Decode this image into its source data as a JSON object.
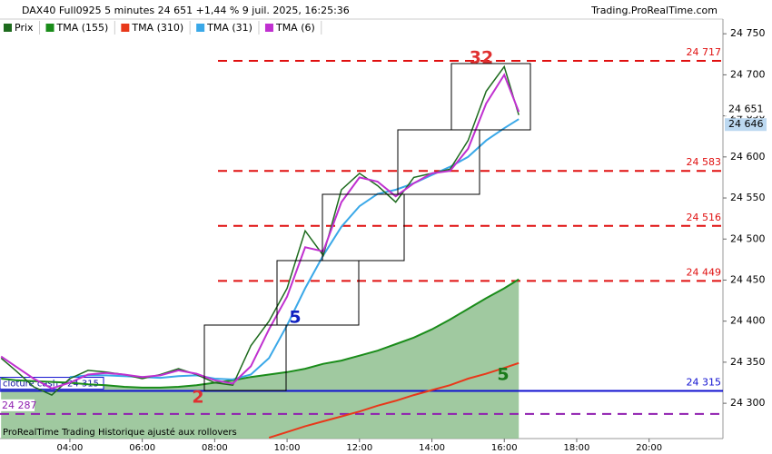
{
  "chart_data": {
    "type": "line",
    "title": "DAX40 Full0925 5 minutes 24 651 +1,44 % 9 juil. 2025, 16:25:36",
    "source": "Trading.ProRealTime.com",
    "footer": "ProRealTime Trading  Historique ajusté aux rollovers",
    "x": [
      2.1,
      2.5,
      3,
      3.5,
      4,
      4.5,
      5,
      5.5,
      6,
      6.5,
      7,
      7.5,
      8,
      8.5,
      9,
      9.5,
      10,
      10.5,
      11,
      11.5,
      12,
      12.5,
      13,
      13.5,
      14,
      14.5,
      15,
      15.5,
      16,
      16.4
    ],
    "series": [
      {
        "name": "Prix",
        "color": "#1e6b1e",
        "values": [
          24355,
          24340,
          24320,
          24310,
          24330,
          24340,
          24338,
          24335,
          24330,
          24335,
          24342,
          24335,
          24325,
          24322,
          24370,
          24400,
          24440,
          24510,
          24480,
          24560,
          24580,
          24565,
          24545,
          24575,
          24580,
          24585,
          24620,
          24680,
          24710,
          24651
        ]
      },
      {
        "name": "TMA (155)",
        "color": "#1a8c1a",
        "values": [
          24330,
          24328,
          24327,
          24326,
          24325,
          24323,
          24322,
          24320,
          24319,
          24319,
          24320,
          24322,
          24325,
          24328,
          24332,
          24335,
          24338,
          24342,
          24348,
          24352,
          24358,
          24364,
          24372,
          24380,
          24390,
          24402,
          24415,
          24428,
          24440,
          24451
        ]
      },
      {
        "name": "TMA (310)",
        "color": "#e8381a",
        "values": [
          null,
          null,
          null,
          null,
          null,
          null,
          null,
          null,
          null,
          null,
          null,
          null,
          null,
          null,
          null,
          24258,
          24265,
          24272,
          24278,
          24284,
          24290,
          24297,
          24303,
          24310,
          24316,
          24322,
          24330,
          24336,
          24343,
          24349
        ]
      },
      {
        "name": "TMA (31)",
        "color": "#3aa8e8",
        "values": [
          null,
          null,
          null,
          null,
          24332,
          24334,
          24334,
          24333,
          24332,
          24331,
          24333,
          24334,
          24330,
          24329,
          24335,
          24355,
          24395,
          24440,
          24480,
          24515,
          24540,
          24555,
          24560,
          24568,
          24578,
          24588,
          24600,
          24620,
          24635,
          24646
        ]
      },
      {
        "name": "TMA (6)",
        "color": "#c030d0",
        "values": [
          24357,
          24345,
          24330,
          24318,
          24325,
          24335,
          24337,
          24335,
          24332,
          24334,
          24340,
          24336,
          24328,
          24324,
          24345,
          24390,
          24430,
          24490,
          24485,
          24545,
          24575,
          24570,
          24552,
          24568,
          24580,
          24583,
          24610,
          24665,
          24700,
          24655
        ]
      }
    ],
    "xlim": [
      2.07,
      22.04
    ],
    "xticks": [
      {
        "value": 4,
        "label": "04:00"
      },
      {
        "value": 6,
        "label": "06:00"
      },
      {
        "value": 8,
        "label": "08:00"
      },
      {
        "value": 10,
        "label": "10:00"
      },
      {
        "value": 12,
        "label": "12:00"
      },
      {
        "value": 14,
        "label": "14:00"
      },
      {
        "value": 16,
        "label": "16:00"
      },
      {
        "value": 18,
        "label": "18:00"
      },
      {
        "value": 20,
        "label": "20:00"
      }
    ],
    "ylim": [
      24257,
      24769
    ],
    "yticks": [
      {
        "value": 24300,
        "label": "24 300"
      },
      {
        "value": 24350,
        "label": "24 350"
      },
      {
        "value": 24400,
        "label": "24 400"
      },
      {
        "value": 24450,
        "label": "24 450"
      },
      {
        "value": 24500,
        "label": "24 500"
      },
      {
        "value": 24550,
        "label": "24 550"
      },
      {
        "value": 24600,
        "label": "24 600"
      },
      {
        "value": 24650,
        "label": "24 650"
      },
      {
        "value": 24700,
        "label": "24 700"
      },
      {
        "value": 24750,
        "label": "24 750"
      }
    ],
    "levels": [
      {
        "value": 24717,
        "label": "24 717",
        "color": "#e01010",
        "style": "dashed"
      },
      {
        "value": 24583,
        "label": "24 583",
        "color": "#e01010",
        "style": "dashed"
      },
      {
        "value": 24516,
        "label": "24 516",
        "color": "#e01010",
        "style": "dashed"
      },
      {
        "value": 24449,
        "label": "24 449",
        "color": "#e01010",
        "style": "dashed"
      },
      {
        "value": 24315,
        "label": "24 315",
        "color": "#1010d0",
        "style": "solid",
        "note": "clôture cash -  24 315"
      },
      {
        "value": 24287,
        "label": "24 287",
        "color": "#9020b0",
        "style": "dashed"
      }
    ],
    "price_tags": [
      {
        "value": 24651,
        "label": "24 651"
      },
      {
        "value": 24646,
        "label": "24 646"
      }
    ],
    "annotations": [
      {
        "text": "2",
        "color": "#e03030"
      },
      {
        "text": "5",
        "color": "#1020c0"
      },
      {
        "text": "5",
        "color": "#1a7a1a"
      },
      {
        "text": "32",
        "color": "#e03030"
      }
    ]
  }
}
